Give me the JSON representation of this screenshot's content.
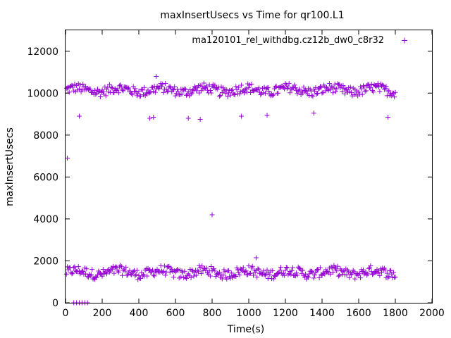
{
  "chart_data": {
    "type": "scatter",
    "title": "maxInsertUsecs vs Time for qr100.L1",
    "xlabel": "Time(s)",
    "ylabel": "maxInsertUsecs",
    "xlim": [
      0,
      2000
    ],
    "ylim": [
      0,
      13000
    ],
    "x_ticks": [
      0,
      200,
      400,
      600,
      800,
      1000,
      1200,
      1400,
      1600,
      1800,
      2000
    ],
    "y_ticks": [
      0,
      2000,
      4000,
      6000,
      8000,
      10000,
      12000
    ],
    "grid": false,
    "legend_position": "top-right",
    "colors": {
      "series": "#9400d3",
      "axis": "#000000"
    },
    "series": [
      {
        "name": "ma120101_rel_withdbg.cz12b_dw0_c8r32",
        "marker": "plus",
        "x_start": 5,
        "x_end": 1800,
        "x_step": 5,
        "bands": [
          {
            "label": "upper",
            "center": 10150,
            "spread": 300
          },
          {
            "label": "lower",
            "center": 1450,
            "spread": 300
          }
        ],
        "outliers": [
          {
            "x": 10,
            "y": 6900
          },
          {
            "x": 75,
            "y": 8900
          },
          {
            "x": 460,
            "y": 8800
          },
          {
            "x": 480,
            "y": 8850
          },
          {
            "x": 670,
            "y": 8800
          },
          {
            "x": 735,
            "y": 8750
          },
          {
            "x": 800,
            "y": 4200
          },
          {
            "x": 960,
            "y": 8900
          },
          {
            "x": 1100,
            "y": 8950
          },
          {
            "x": 1355,
            "y": 9050
          },
          {
            "x": 1760,
            "y": 8850
          },
          {
            "x": 495,
            "y": 10800
          },
          {
            "x": 1040,
            "y": 2150
          },
          {
            "x": 45,
            "y": 0
          },
          {
            "x": 60,
            "y": 0
          },
          {
            "x": 75,
            "y": 0
          },
          {
            "x": 90,
            "y": 0
          },
          {
            "x": 105,
            "y": 0
          },
          {
            "x": 120,
            "y": 0
          }
        ]
      }
    ]
  }
}
